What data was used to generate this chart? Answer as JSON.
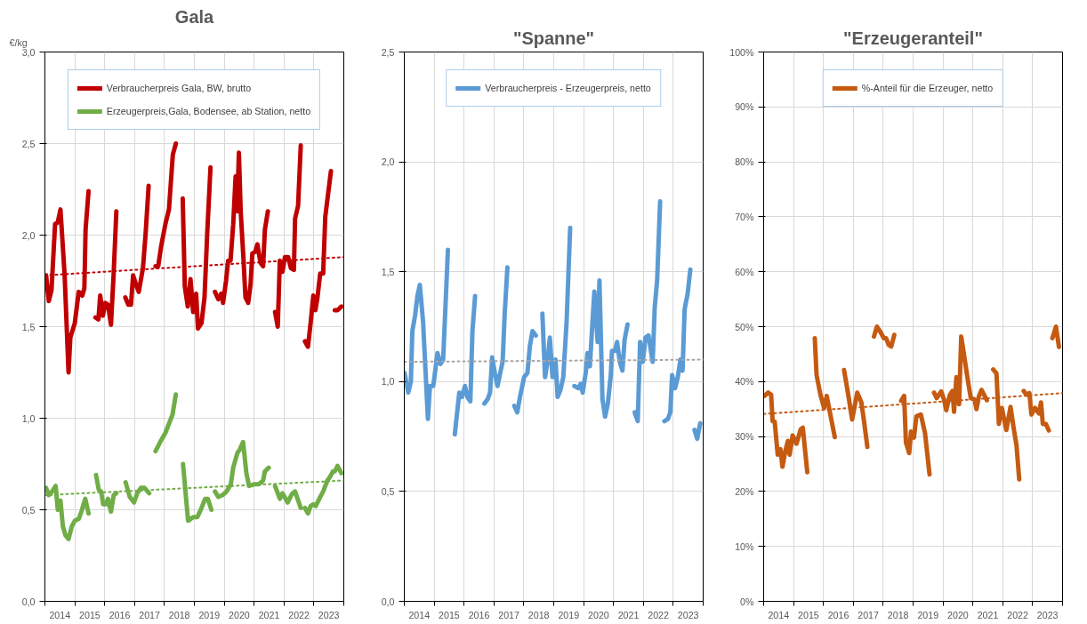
{
  "chart_data": [
    {
      "type": "line",
      "title": "Gala",
      "ylabel": "€/kg",
      "xlim": [
        2014,
        2024
      ],
      "xticks": [
        {
          "value": 2014,
          "label": null
        },
        {
          "value": 2014.5,
          "label": "2014"
        },
        {
          "value": 2015,
          "label": null
        },
        {
          "value": 2015.5,
          "label": "2015"
        },
        {
          "value": 2016,
          "label": null
        },
        {
          "value": 2016.5,
          "label": "2016"
        },
        {
          "value": 2017,
          "label": null
        },
        {
          "value": 2017.5,
          "label": "2017"
        },
        {
          "value": 2018,
          "label": null
        },
        {
          "value": 2018.5,
          "label": "2018"
        },
        {
          "value": 2019,
          "label": null
        },
        {
          "value": 2019.5,
          "label": "2019"
        },
        {
          "value": 2020,
          "label": null
        },
        {
          "value": 2020.5,
          "label": "2020"
        },
        {
          "value": 2021,
          "label": null
        },
        {
          "value": 2021.5,
          "label": "2021"
        },
        {
          "value": 2022,
          "label": null
        },
        {
          "value": 2022.5,
          "label": "2022"
        },
        {
          "value": 2023,
          "label": null
        },
        {
          "value": 2023.5,
          "label": "2023"
        },
        {
          "value": 2024,
          "label": null
        }
      ],
      "ylim": [
        0,
        3
      ],
      "yticks": [
        {
          "value": 0,
          "label": "0,0"
        },
        {
          "value": 0.5,
          "label": "0,5"
        },
        {
          "value": 1,
          "label": "1,0"
        },
        {
          "value": 1.5,
          "label": "1,5"
        },
        {
          "value": 2,
          "label": "2,0"
        },
        {
          "value": 2.5,
          "label": "2,5"
        },
        {
          "value": 3,
          "label": "3,0"
        }
      ],
      "grid": true,
      "legend": "top",
      "series": [
        {
          "name": "Verbraucherpreis Gala, BW, brutto",
          "color": "#c00000",
          "x": [
            2014.04,
            2014.13,
            2014.22,
            2014.34,
            2014.43,
            2014.52,
            2014.66,
            2014.79,
            2014.85,
            2015.0,
            2015.13,
            2015.25,
            2015.32,
            2015.36,
            2015.46,
            2015.58,
            2015.69,
            2015.79,
            2015.85,
            2015.94,
            2016.02,
            2016.11,
            2016.21,
            2016.3,
            2016.39,
            2016.54,
            2016.69,
            2016.79,
            2016.88,
            2016.95,
            2017.07,
            2017.14,
            2017.28,
            2017.37,
            2017.47,
            2017.58,
            2017.7,
            2017.79,
            2017.89,
            2018.03,
            2018.15,
            2018.21,
            2018.28,
            2018.38,
            2018.5,
            2018.61,
            2018.68,
            2018.78,
            2018.87,
            2018.96,
            2019.06,
            2019.12,
            2019.24,
            2019.34,
            2019.43,
            2019.54,
            2019.62,
            2019.69,
            2019.8,
            2019.9,
            2019.96,
            2020.06,
            2020.13,
            2020.21,
            2020.3,
            2020.38,
            2020.43,
            2020.49,
            2020.55,
            2020.64,
            2020.71,
            2020.8,
            2020.88,
            2020.94,
            2021.04,
            2021.11,
            2021.21,
            2021.3,
            2021.36,
            2021.46,
            2021.58,
            2021.7,
            2021.79,
            2021.86,
            2021.95,
            2022.03,
            2022.14,
            2022.23,
            2022.33,
            2022.37,
            2022.47,
            2022.56,
            2022.63,
            2022.7,
            2022.8,
            2022.89,
            2022.98,
            2023.05,
            2023.12,
            2023.21,
            2023.31,
            2023.38,
            2023.57,
            2023.64,
            2023.7,
            2023.79,
            2023.92
          ],
          "values": [
            1.78,
            1.64,
            1.7,
            2.06,
            2.07,
            2.14,
            1.78,
            1.25,
            1.44,
            1.52,
            1.69,
            1.67,
            1.71,
            2.03,
            2.24,
            null,
            1.55,
            1.54,
            1.67,
            1.56,
            1.63,
            1.62,
            1.51,
            1.79,
            2.13,
            null,
            1.66,
            1.62,
            1.62,
            1.78,
            1.72,
            1.69,
            1.82,
            2.01,
            2.27,
            null,
            1.83,
            1.83,
            1.94,
            2.06,
            2.14,
            2.28,
            2.44,
            2.5,
            null,
            2.2,
            1.72,
            1.61,
            1.76,
            1.58,
            1.68,
            1.49,
            1.52,
            1.66,
            2.01,
            2.37,
            null,
            1.69,
            1.65,
            1.68,
            1.63,
            1.75,
            1.86,
            1.86,
            2.06,
            2.32,
            2.13,
            2.45,
            2.13,
            1.88,
            1.66,
            1.63,
            1.73,
            1.9,
            1.91,
            1.95,
            1.85,
            1.83,
            2.03,
            2.13,
            null,
            1.58,
            1.5,
            1.86,
            1.8,
            1.88,
            1.88,
            1.82,
            1.81,
            2.09,
            2.16,
            2.49,
            null,
            1.42,
            1.39,
            1.52,
            1.67,
            1.59,
            1.66,
            1.79,
            1.79,
            2.1,
            2.35,
            null,
            1.59,
            1.59,
            1.61
          ]
        },
        {
          "name": "Erzeugerpreis,Gala, Bodensee, ab Station, netto",
          "color": "#70ad47",
          "x": [
            2014.04,
            2014.13,
            2014.24,
            2014.36,
            2014.43,
            2014.52,
            2014.6,
            2014.69,
            2014.79,
            2014.9,
            2015.0,
            2015.13,
            2015.22,
            2015.35,
            2015.46,
            2015.58,
            2015.71,
            2015.8,
            2015.88,
            2015.95,
            2016.05,
            2016.11,
            2016.21,
            2016.3,
            2016.39,
            2016.54,
            2016.7,
            2016.84,
            2016.98,
            2017.09,
            2017.21,
            2017.33,
            2017.49,
            2017.6,
            2017.7,
            2017.89,
            2018.03,
            2018.15,
            2018.27,
            2018.38,
            2018.5,
            2018.62,
            2018.79,
            2018.96,
            2019.1,
            2019.24,
            2019.36,
            2019.45,
            2019.57,
            2019.63,
            2019.69,
            2019.8,
            2019.94,
            2020.08,
            2020.22,
            2020.3,
            2020.44,
            2020.52,
            2020.63,
            2020.74,
            2020.83,
            2021.02,
            2021.16,
            2021.3,
            2021.36,
            2021.49,
            2021.6,
            2021.7,
            2021.86,
            2021.95,
            2022.12,
            2022.28,
            2022.37,
            2022.56,
            2022.63,
            2022.7,
            2022.8,
            2022.89,
            2022.98,
            2023.06,
            2023.21,
            2023.31,
            2023.45,
            2023.54,
            2023.64,
            2023.7,
            2023.79,
            2023.92
          ],
          "values": [
            0.62,
            0.58,
            0.6,
            0.63,
            0.5,
            0.55,
            0.41,
            0.36,
            0.34,
            0.41,
            0.44,
            0.45,
            0.49,
            0.56,
            0.48,
            null,
            0.69,
            0.61,
            0.6,
            0.53,
            0.53,
            0.56,
            0.49,
            0.58,
            0.59,
            null,
            0.65,
            0.57,
            0.54,
            0.59,
            0.62,
            0.62,
            0.59,
            null,
            0.82,
            0.88,
            0.92,
            0.97,
            1.02,
            1.13,
            null,
            0.75,
            0.44,
            0.46,
            0.46,
            0.51,
            0.56,
            0.56,
            0.5,
            null,
            0.6,
            0.57,
            0.58,
            0.6,
            0.64,
            0.73,
            0.81,
            0.83,
            0.87,
            0.7,
            0.63,
            0.64,
            0.64,
            0.66,
            0.71,
            0.73,
            null,
            0.63,
            0.56,
            0.59,
            0.54,
            0.59,
            0.6,
            0.51,
            null,
            0.51,
            0.48,
            0.52,
            0.53,
            0.52,
            0.57,
            0.6,
            0.66,
            0.68,
            0.71,
            0.71,
            0.74,
            0.7
          ]
        },
        {
          "color": "#c00000",
          "line_style": "dotted",
          "x": [
            2014,
            2024
          ],
          "values": [
            1.78,
            1.88
          ]
        },
        {
          "color": "#70ad47",
          "line_style": "dotted",
          "x": [
            2014,
            2024
          ],
          "values": [
            0.58,
            0.66
          ]
        }
      ]
    },
    {
      "type": "line",
      "title": "\"Spanne\"",
      "xlim": [
        2014,
        2024
      ],
      "xticks": [
        {
          "value": 2014,
          "label": null
        },
        {
          "value": 2014.5,
          "label": "2014"
        },
        {
          "value": 2015,
          "label": null
        },
        {
          "value": 2015.5,
          "label": "2015"
        },
        {
          "value": 2016,
          "label": null
        },
        {
          "value": 2016.5,
          "label": "2016"
        },
        {
          "value": 2017,
          "label": null
        },
        {
          "value": 2017.5,
          "label": "2017"
        },
        {
          "value": 2018,
          "label": null
        },
        {
          "value": 2018.5,
          "label": "2018"
        },
        {
          "value": 2019,
          "label": null
        },
        {
          "value": 2019.5,
          "label": "2019"
        },
        {
          "value": 2020,
          "label": null
        },
        {
          "value": 2020.5,
          "label": "2020"
        },
        {
          "value": 2021,
          "label": null
        },
        {
          "value": 2021.5,
          "label": "2021"
        },
        {
          "value": 2022,
          "label": null
        },
        {
          "value": 2022.5,
          "label": "2022"
        },
        {
          "value": 2023,
          "label": null
        },
        {
          "value": 2023.5,
          "label": "2023"
        },
        {
          "value": 2024,
          "label": null
        }
      ],
      "ylim": [
        0,
        2.5
      ],
      "yticks": [
        {
          "value": 0,
          "label": "0,0"
        },
        {
          "value": 0.5,
          "label": "0,5"
        },
        {
          "value": 1,
          "label": "1,0"
        },
        {
          "value": 1.5,
          "label": "1,5"
        },
        {
          "value": 2,
          "label": "2,0"
        },
        {
          "value": 2.5,
          "label": "2,5"
        }
      ],
      "grid": true,
      "legend": "top",
      "series": [
        {
          "name": "Verbraucherpreis - Erzeugerpreis, netto",
          "color": "#5b9bd5",
          "x": [
            2014.01,
            2014.13,
            2014.22,
            2014.27,
            2014.36,
            2014.44,
            2014.52,
            2014.63,
            2014.79,
            2014.86,
            2014.97,
            2015.11,
            2015.21,
            2015.3,
            2015.46,
            2015.58,
            2015.69,
            2015.84,
            2015.93,
            2016.03,
            2016.11,
            2016.21,
            2016.28,
            2016.37,
            2016.52,
            2016.68,
            2016.79,
            2016.87,
            2016.94,
            2017.03,
            2017.12,
            2017.21,
            2017.29,
            2017.36,
            2017.45,
            2017.56,
            2017.68,
            2017.78,
            2017.87,
            2018.01,
            2018.12,
            2018.2,
            2018.29,
            2018.4,
            2018.51,
            2018.62,
            2018.71,
            2018.8,
            2018.87,
            2018.96,
            2019.06,
            2019.13,
            2019.22,
            2019.32,
            2019.43,
            2019.55,
            2019.62,
            2019.69,
            2019.83,
            2019.9,
            2019.97,
            2020.07,
            2020.13,
            2020.21,
            2020.3,
            2020.36,
            2020.47,
            2020.53,
            2020.63,
            2020.72,
            2020.81,
            2020.91,
            2020.95,
            2021.05,
            2021.12,
            2021.21,
            2021.3,
            2021.37,
            2021.47,
            2021.59,
            2021.71,
            2021.81,
            2021.89,
            2021.98,
            2022.07,
            2022.17,
            2022.31,
            2022.38,
            2022.46,
            2022.56,
            2022.63,
            2022.7,
            2022.82,
            2022.9,
            2022.96,
            2023.06,
            2023.15,
            2023.24,
            2023.31,
            2023.38,
            2023.48,
            2023.57,
            2023.64,
            2023.71,
            2023.8,
            2023.9
          ],
          "values": [
            1.04,
            0.95,
            1.0,
            1.23,
            1.3,
            1.39,
            1.44,
            1.27,
            0.83,
            0.98,
            0.98,
            1.13,
            1.08,
            1.1,
            1.6,
            null,
            0.76,
            0.95,
            0.93,
            0.98,
            0.93,
            0.91,
            1.23,
            1.39,
            null,
            0.9,
            0.92,
            0.95,
            1.11,
            1.04,
            0.98,
            1.04,
            1.09,
            1.31,
            1.52,
            null,
            0.89,
            0.86,
            0.93,
            1.02,
            1.04,
            1.16,
            1.23,
            1.21,
            null,
            1.31,
            1.02,
            1.1,
            1.2,
            1.02,
            1.1,
            0.93,
            0.96,
            1.02,
            1.27,
            1.7,
            null,
            0.98,
            0.97,
            0.99,
            0.95,
            1.04,
            1.13,
            1.07,
            1.28,
            1.41,
            1.18,
            1.46,
            0.92,
            0.84,
            0.9,
            1.03,
            1.14,
            1.14,
            1.18,
            1.09,
            1.05,
            1.19,
            1.26,
            null,
            0.86,
            0.82,
            1.18,
            1.09,
            1.2,
            1.21,
            1.09,
            1.34,
            1.46,
            1.82,
            null,
            0.82,
            0.83,
            0.86,
            1.03,
            0.97,
            1.02,
            1.1,
            1.05,
            1.33,
            1.4,
            1.51,
            null,
            0.78,
            0.74,
            0.81
          ]
        },
        {
          "color": "#a6a6a6",
          "line_style": "dotted",
          "x": [
            2014,
            2024
          ],
          "values": [
            1.09,
            1.1
          ]
        }
      ]
    },
    {
      "type": "line",
      "title": "\"Erzeugeranteil\"",
      "xlim": [
        2014,
        2024
      ],
      "xticks": [
        {
          "value": 2014,
          "label": null
        },
        {
          "value": 2014.5,
          "label": "2014"
        },
        {
          "value": 2015,
          "label": null
        },
        {
          "value": 2015.5,
          "label": "2015"
        },
        {
          "value": 2016,
          "label": null
        },
        {
          "value": 2016.5,
          "label": "2016"
        },
        {
          "value": 2017,
          "label": null
        },
        {
          "value": 2017.5,
          "label": "2017"
        },
        {
          "value": 2018,
          "label": null
        },
        {
          "value": 2018.5,
          "label": "2018"
        },
        {
          "value": 2019,
          "label": null
        },
        {
          "value": 2019.5,
          "label": "2019"
        },
        {
          "value": 2020,
          "label": null
        },
        {
          "value": 2020.5,
          "label": "2020"
        },
        {
          "value": 2021,
          "label": null
        },
        {
          "value": 2021.5,
          "label": "2021"
        },
        {
          "value": 2022,
          "label": null
        },
        {
          "value": 2022.5,
          "label": "2022"
        },
        {
          "value": 2023,
          "label": null
        },
        {
          "value": 2023.5,
          "label": "2023"
        },
        {
          "value": 2024,
          "label": null
        }
      ],
      "ylim": [
        0,
        100
      ],
      "yticks": [
        {
          "value": 0,
          "label": "0%"
        },
        {
          "value": 10,
          "label": "10%"
        },
        {
          "value": 20,
          "label": "20%"
        },
        {
          "value": 30,
          "label": "30%"
        },
        {
          "value": 40,
          "label": "40%"
        },
        {
          "value": 50,
          "label": "50%"
        },
        {
          "value": 60,
          "label": "60%"
        },
        {
          "value": 70,
          "label": "70%"
        },
        {
          "value": 80,
          "label": "80%"
        },
        {
          "value": 90,
          "label": "90%"
        },
        {
          "value": 100,
          "label": "100%"
        }
      ],
      "grid": true,
      "legend": "top",
      "series": [
        {
          "name": "%-Anteil für die Erzeuger, netto",
          "color": "#c55a11",
          "x": [
            2014.03,
            2014.15,
            2014.25,
            2014.3,
            2014.37,
            2014.47,
            2014.56,
            2014.63,
            2014.73,
            2014.81,
            2014.87,
            2014.97,
            2015.1,
            2015.24,
            2015.31,
            2015.46,
            2015.58,
            2015.71,
            2015.77,
            2015.9,
            2016.02,
            2016.11,
            2016.21,
            2016.38,
            2016.54,
            2016.69,
            2016.84,
            2016.96,
            2017.03,
            2017.13,
            2017.27,
            2017.37,
            2017.47,
            2017.58,
            2017.69,
            2017.79,
            2017.9,
            2018.02,
            2018.1,
            2018.18,
            2018.27,
            2018.37,
            2018.48,
            2018.6,
            2018.7,
            2018.76,
            2018.87,
            2018.93,
            2019.03,
            2019.11,
            2019.26,
            2019.4,
            2019.55,
            2019.62,
            2019.7,
            2019.79,
            2019.94,
            2020.03,
            2020.11,
            2020.23,
            2020.32,
            2020.37,
            2020.45,
            2020.54,
            2020.61,
            2020.69,
            2020.81,
            2020.93,
            2021.05,
            2021.12,
            2021.2,
            2021.29,
            2021.47,
            2021.58,
            2021.68,
            2021.79,
            2021.87,
            2021.97,
            2022.12,
            2022.26,
            2022.36,
            2022.46,
            2022.55,
            2022.63,
            2022.7,
            2022.79,
            2022.89,
            2022.96,
            2023.08,
            2023.21,
            2023.28,
            2023.34,
            2023.44,
            2023.54,
            2023.6,
            2023.66,
            2023.78,
            2023.88
          ],
          "values": [
            37.4,
            38.0,
            37.6,
            32.8,
            32.7,
            26.7,
            27.7,
            24.5,
            27.5,
            29.2,
            26.7,
            30.2,
            28.7,
            31.3,
            31.6,
            23.5,
            null,
            47.9,
            41.2,
            37.6,
            35.2,
            37.4,
            34.6,
            29.9,
            null,
            42.1,
            37.3,
            33.1,
            35.1,
            38.0,
            36.2,
            32.3,
            28.1,
            null,
            48.2,
            50.0,
            49.1,
            47.9,
            47.9,
            46.7,
            46.4,
            48.5,
            null,
            36.5,
            37.4,
            28.9,
            27.0,
            30.9,
            29.8,
            33.7,
            34.0,
            30.6,
            23.1,
            null,
            38.0,
            37.0,
            38.2,
            36.8,
            34.8,
            37.6,
            38.3,
            34.5,
            40.8,
            35.9,
            48.2,
            45.4,
            41.0,
            37.0,
            36.8,
            35.0,
            37.3,
            38.5,
            36.6,
            null,
            42.2,
            41.5,
            32.3,
            35.2,
            31.2,
            35.4,
            31.7,
            28.4,
            22.2,
            null,
            38.3,
            37.6,
            37.9,
            34.0,
            35.2,
            34.2,
            36.2,
            32.3,
            32.3,
            31.1,
            null,
            47.9,
            50.0,
            46.3
          ]
        },
        {
          "color": "#c55a11",
          "line_style": "dotted",
          "x": [
            2014,
            2024
          ],
          "values": [
            34.1,
            37.9
          ]
        }
      ]
    }
  ]
}
